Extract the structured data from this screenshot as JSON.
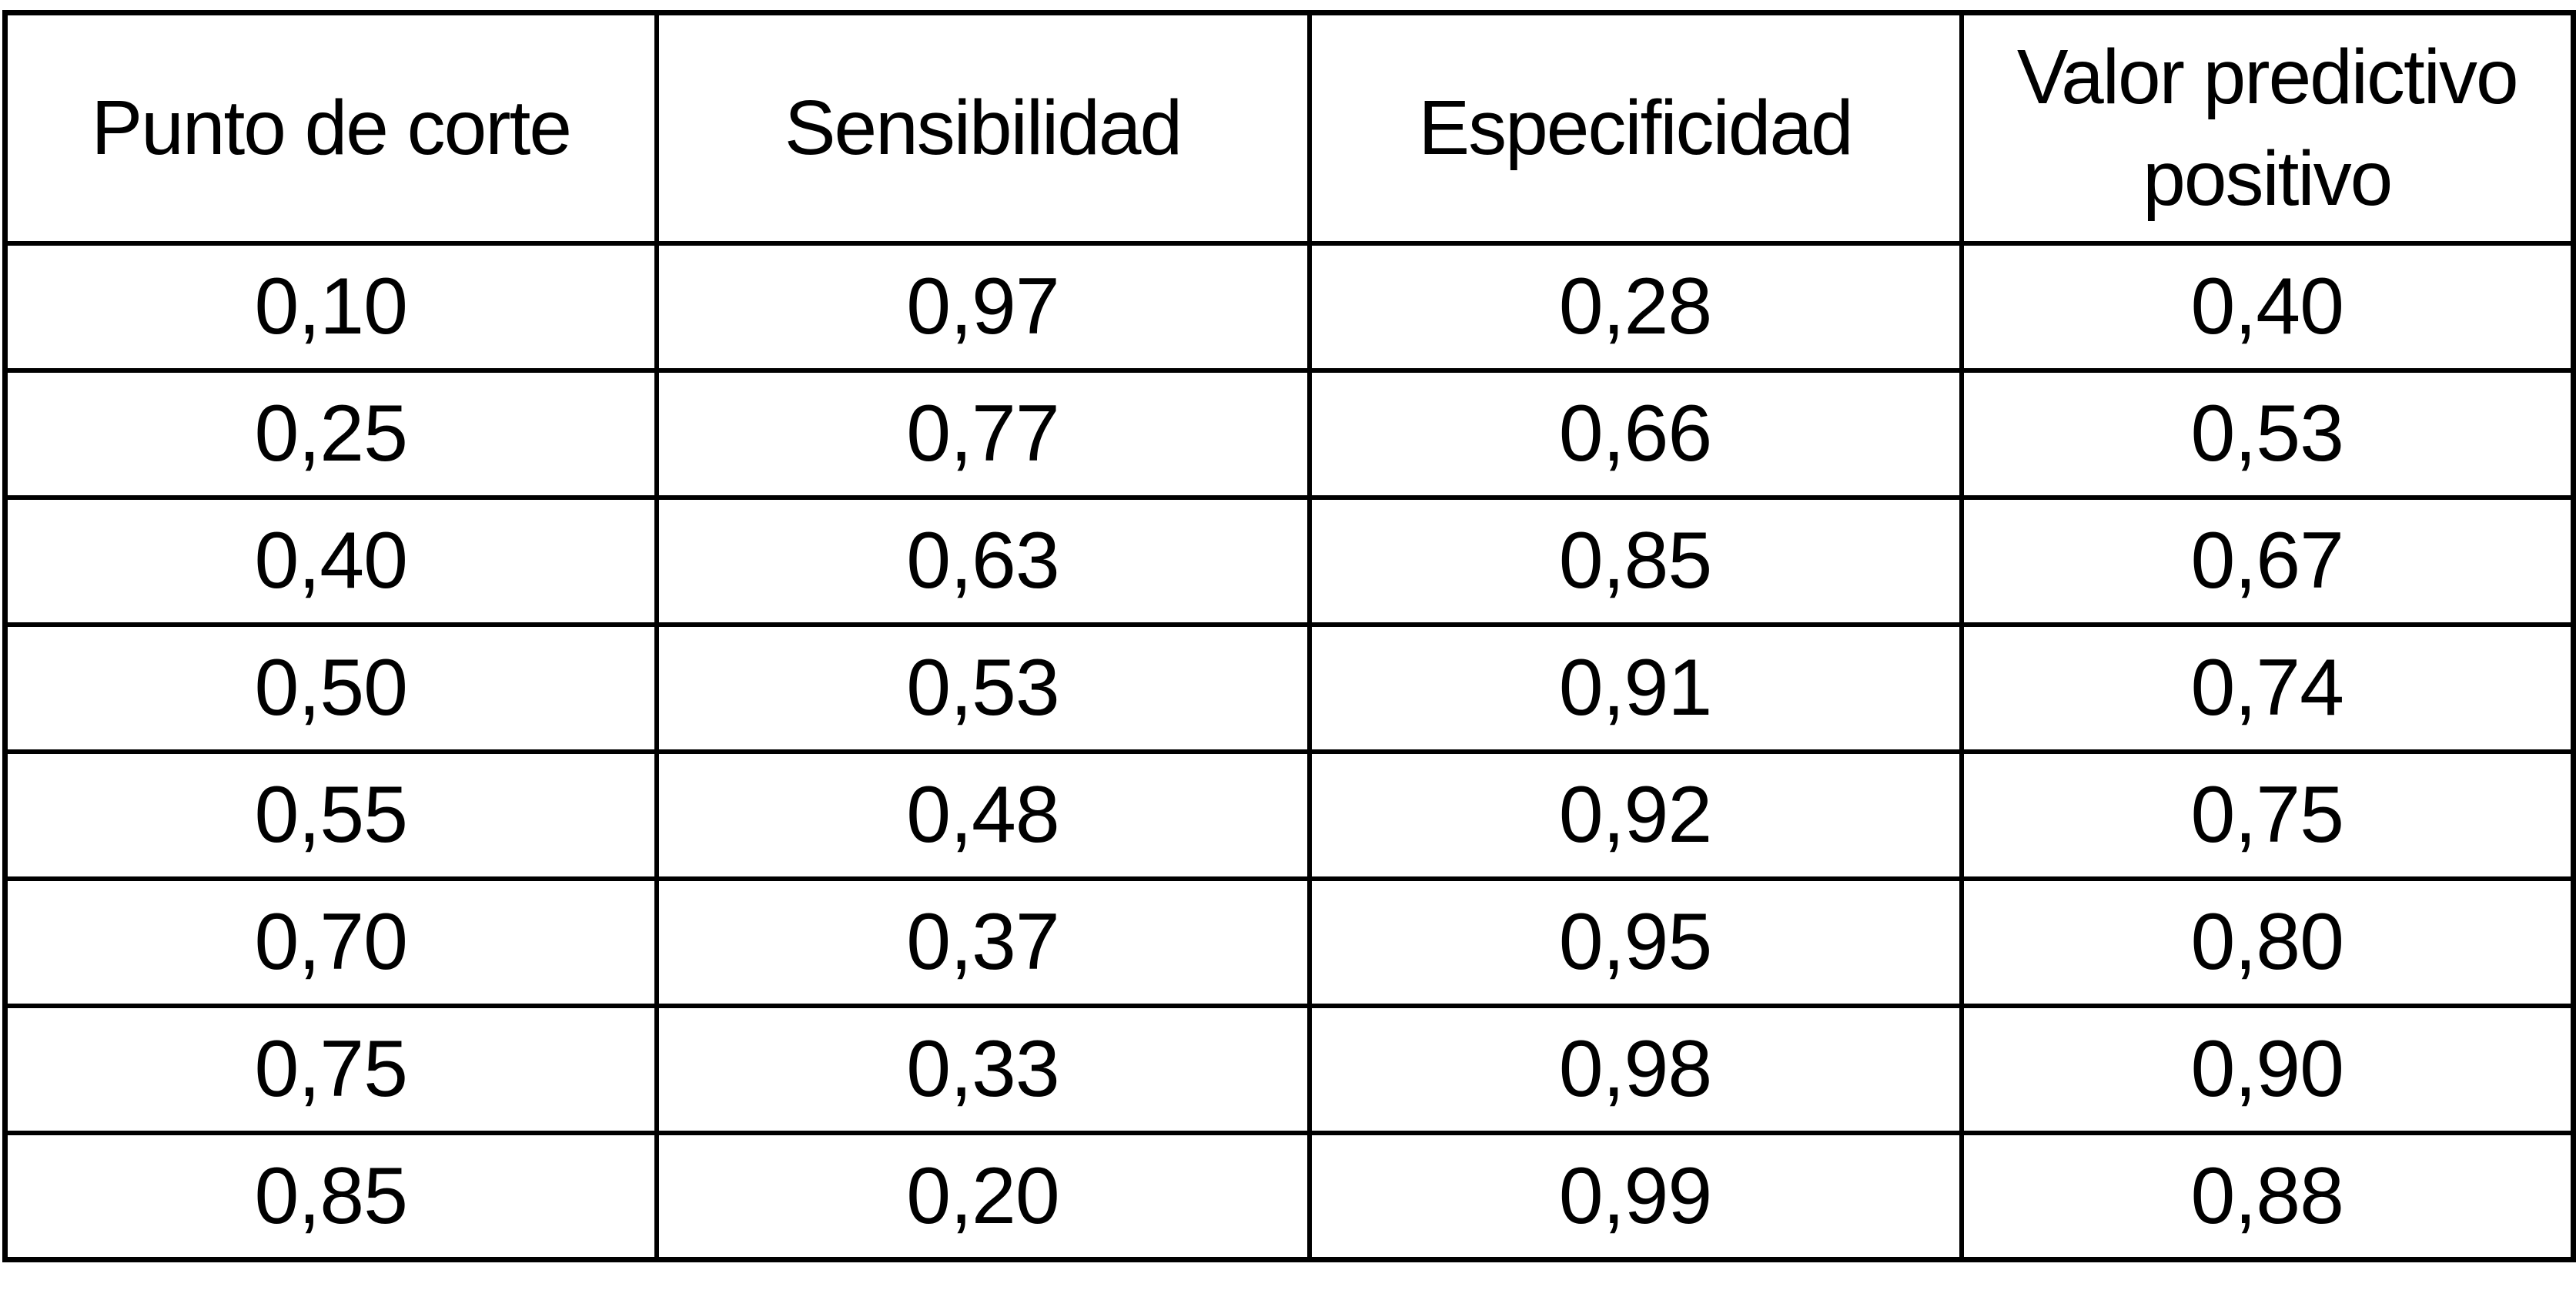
{
  "colors": {
    "background": "#ffffff",
    "border": "#000000",
    "text": "#000000"
  },
  "header_display": {
    "punto": "Punto de corte",
    "sensibilidad": "Sensibilidad",
    "especificidad": "Especificidad",
    "vpp_line1": "Valor predictivo",
    "vpp_line2": "positivo"
  },
  "chart_data": {
    "type": "table",
    "columns": [
      "Punto de corte",
      "Sensibilidad",
      "Especificidad",
      "Valor predictivo positivo"
    ],
    "rows": [
      [
        "0,10",
        "0,97",
        "0,28",
        "0,40"
      ],
      [
        "0,25",
        "0,77",
        "0,66",
        "0,53"
      ],
      [
        "0,40",
        "0,63",
        "0,85",
        "0,67"
      ],
      [
        "0,50",
        "0,53",
        "0,91",
        "0,74"
      ],
      [
        "0,55",
        "0,48",
        "0,92",
        "0,75"
      ],
      [
        "0,70",
        "0,37",
        "0,95",
        "0,80"
      ],
      [
        "0,75",
        "0,33",
        "0,98",
        "0,90"
      ],
      [
        "0,85",
        "0,20",
        "0,99",
        "0,88"
      ]
    ],
    "decimal_separator": ",",
    "grid": true,
    "layout_hints": {
      "header_wrap_column_index": 3,
      "borders": "all-black-solid"
    }
  }
}
